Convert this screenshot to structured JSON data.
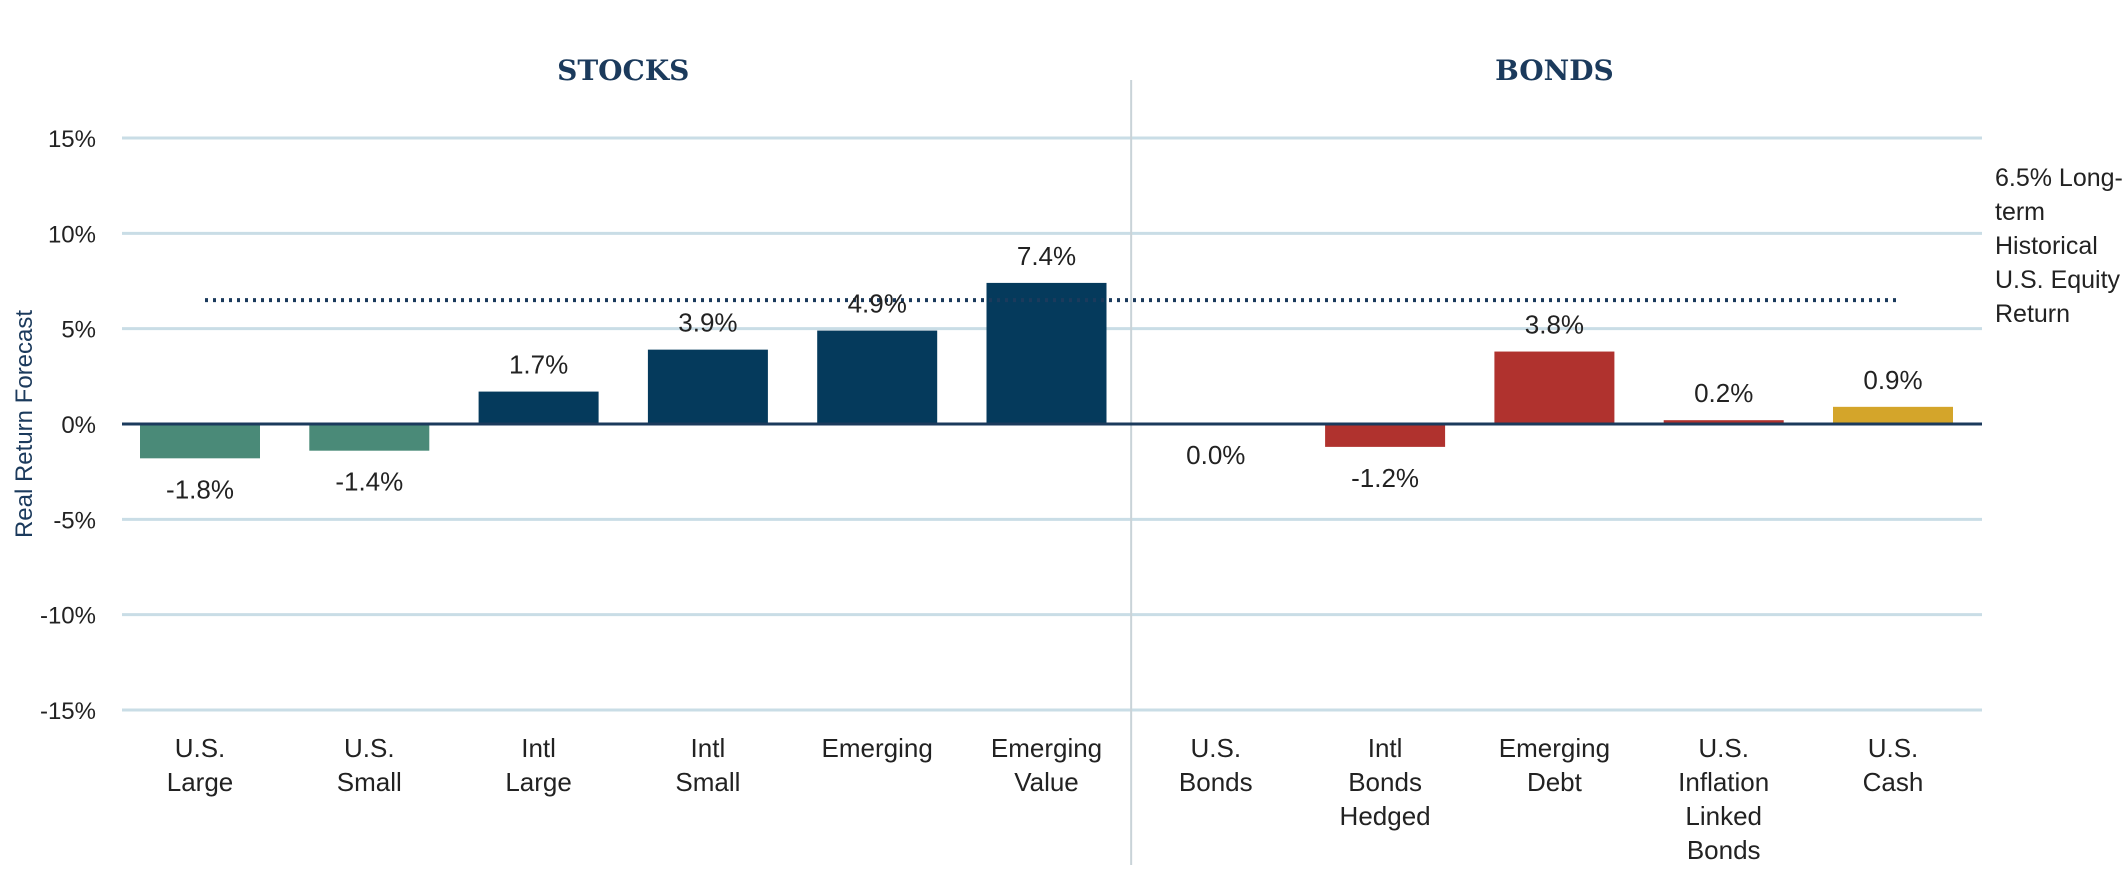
{
  "chart_data": {
    "type": "bar",
    "ylabel": "Real Return Forecast",
    "ylim": [
      -15,
      15
    ],
    "yticks": [
      15,
      10,
      5,
      0,
      -5,
      -10,
      -15
    ],
    "ytick_labels": [
      "15%",
      "10%",
      "5%",
      "0%",
      "-5%",
      "-10%",
      "-15%"
    ],
    "groups": [
      {
        "title": "STOCKS",
        "start": 0,
        "end": 5
      },
      {
        "title": "BONDS",
        "start": 6,
        "end": 10
      }
    ],
    "categories": [
      [
        "U.S.",
        "Large"
      ],
      [
        "U.S.",
        "Small"
      ],
      [
        "Intl",
        "Large"
      ],
      [
        "Intl",
        "Small"
      ],
      [
        "Emerging"
      ],
      [
        "Emerging",
        "Value"
      ],
      [
        "U.S.",
        "Bonds"
      ],
      [
        "Intl",
        "Bonds",
        "Hedged"
      ],
      [
        "Emerging",
        "Debt"
      ],
      [
        "U.S.",
        "Inflation",
        "Linked",
        "Bonds"
      ],
      [
        "U.S.",
        "Cash"
      ]
    ],
    "values": [
      -1.8,
      -1.4,
      1.7,
      3.9,
      4.9,
      7.4,
      0.0,
      -1.2,
      3.8,
      0.2,
      0.9
    ],
    "value_labels": [
      "-1.8%",
      "-1.4%",
      "1.7%",
      "3.9%",
      "4.9%",
      "7.4%",
      "0.0%",
      "-1.2%",
      "3.8%",
      "0.2%",
      "0.9%"
    ],
    "colors": [
      "#4a8a78",
      "#4a8a78",
      "#053a5c",
      "#053a5c",
      "#053a5c",
      "#053a5c",
      "#053a5c",
      "#b0322e",
      "#b0322e",
      "#b0322e",
      "#d4a52a"
    ],
    "reference_line": {
      "value": 6.5,
      "label_lines": [
        "6.5% Long-",
        "term",
        "Historical",
        "U.S. Equity",
        "Return"
      ],
      "color": "#1b3a5c"
    },
    "grid": true,
    "colors_meta": {
      "grid": "#c9dde6",
      "axis": "#1b3a5c",
      "divider": "#c9d3d8"
    }
  }
}
